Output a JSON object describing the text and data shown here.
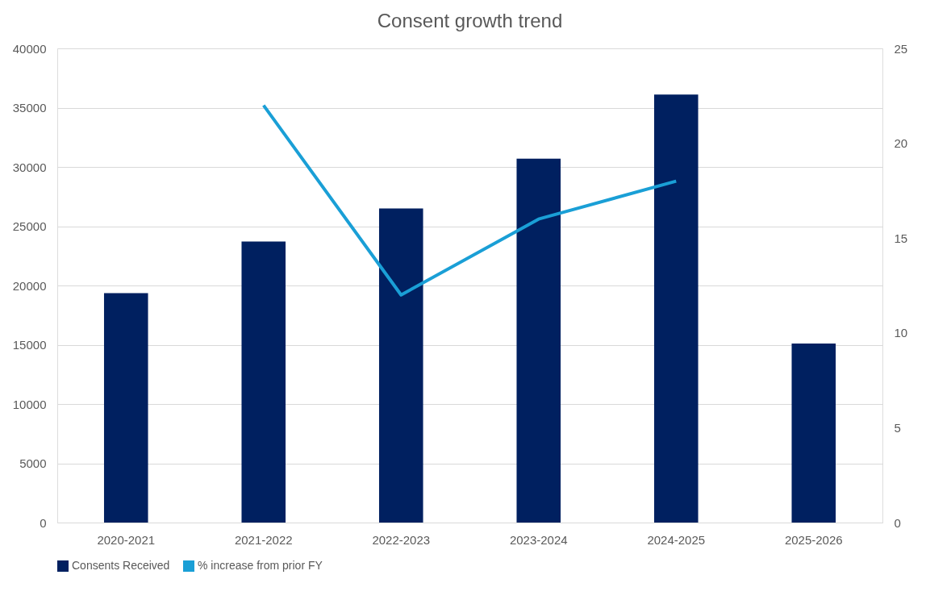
{
  "chart_data": {
    "type": "bar",
    "title": "Consent growth trend",
    "categories": [
      "2020-2021",
      "2021-2022",
      "2022-2023",
      "2023-2024",
      "2024-2025",
      "2025-2026"
    ],
    "series": [
      {
        "name": "Consents Received",
        "color": "#002060",
        "values": [
          19350,
          23700,
          26500,
          30700,
          36100,
          15100
        ]
      },
      {
        "name": "% increase from prior FY",
        "type": "line",
        "axis": "y2",
        "color": "#1a9fd6",
        "values": [
          null,
          22,
          12,
          16,
          18,
          null
        ]
      }
    ],
    "ylim": [
      0,
      40000
    ],
    "yticks": [
      0,
      5000,
      10000,
      15000,
      20000,
      25000,
      30000,
      35000,
      40000
    ],
    "y2lim": [
      0,
      25
    ],
    "y2ticks": [
      0,
      5,
      10,
      15,
      20,
      25
    ],
    "grid": "y",
    "legend": "bottom",
    "marker": "none",
    "line_style": "solid"
  }
}
